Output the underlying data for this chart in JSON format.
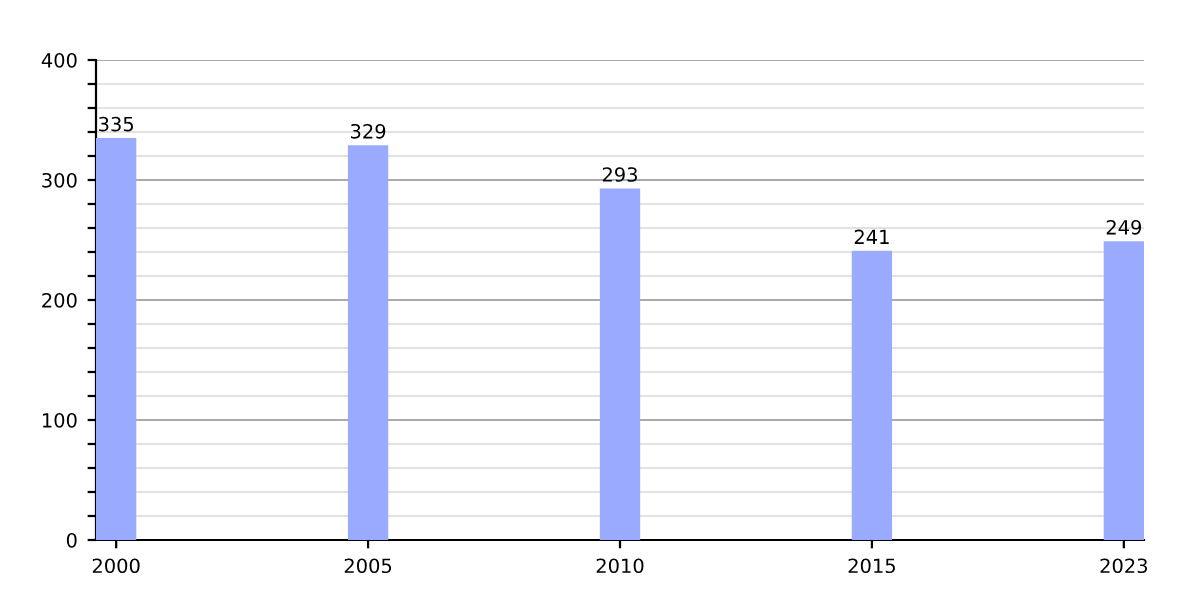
{
  "chart_data": {
    "type": "bar",
    "categories": [
      "2000",
      "2005",
      "2010",
      "2015",
      "2023"
    ],
    "values": [
      335,
      329,
      293,
      241,
      249
    ],
    "color": "#99aaff",
    "data_labels": true,
    "ylim": [
      0,
      400
    ],
    "yticks": [
      0,
      {
        "value": 20,
        "label": null
      },
      {
        "value": 40,
        "label": null
      },
      {
        "value": 60,
        "label": null
      },
      {
        "value": 80,
        "label": null
      },
      100,
      {
        "value": 120,
        "label": null
      },
      {
        "value": 140,
        "label": null
      },
      {
        "value": 160,
        "label": null
      },
      {
        "value": 180,
        "label": null
      },
      200,
      {
        "value": 220,
        "label": null
      },
      {
        "value": 240,
        "label": null
      },
      {
        "value": 260,
        "label": null
      },
      {
        "value": 280,
        "label": null
      },
      300,
      {
        "value": 320,
        "label": null
      },
      {
        "value": 340,
        "label": null
      },
      {
        "value": 360,
        "label": null
      },
      {
        "value": 380,
        "label": null
      },
      400
    ],
    "grid": "y"
  }
}
